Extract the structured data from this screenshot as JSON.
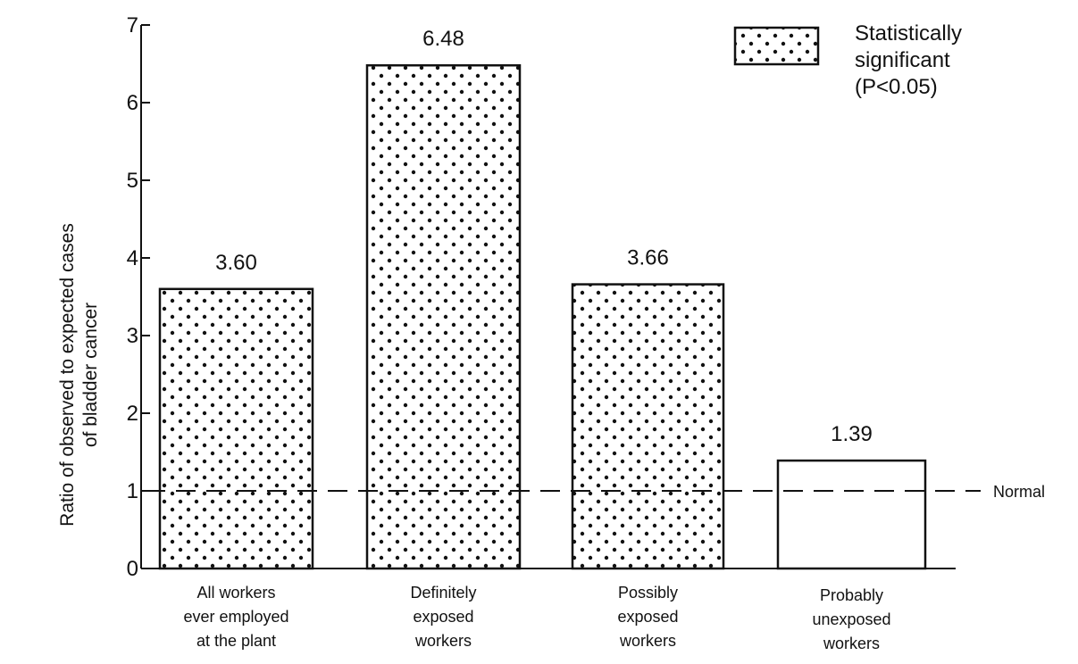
{
  "chart_data": {
    "type": "bar",
    "categories": [
      [
        "All workers",
        "ever employed",
        "at the plant"
      ],
      [
        "Definitely",
        "exposed",
        "workers"
      ],
      [
        "Possibly",
        "exposed",
        "workers"
      ],
      [
        "Probably",
        "unexposed",
        "workers"
      ]
    ],
    "values": [
      3.6,
      6.48,
      3.66,
      1.39
    ],
    "value_labels": [
      "3.60",
      "6.48",
      "3.66",
      "1.39"
    ],
    "significant": [
      true,
      true,
      true,
      false
    ],
    "ylabel": [
      "Ratio of observed to expected cases",
      "of bladder cancer"
    ],
    "ylim": [
      0,
      7
    ],
    "yticks": [
      "0",
      "1",
      "2",
      "3",
      "4",
      "5",
      "6",
      "7"
    ],
    "reference_line": {
      "value": 1,
      "label": "Normal"
    },
    "legend": {
      "position": "top-right",
      "lines": [
        "Statistically",
        "significant",
        "(P<0.05)"
      ]
    },
    "grid": false
  }
}
